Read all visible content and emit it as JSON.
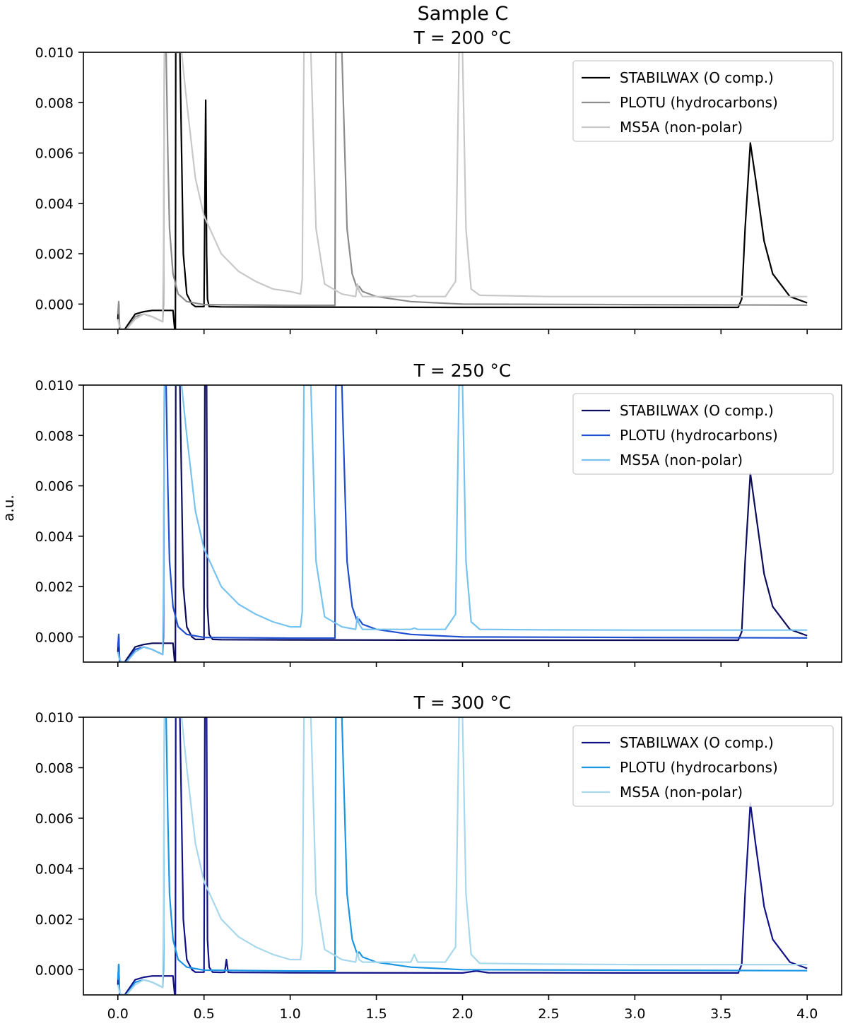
{
  "figure": {
    "suptitle": "Sample C",
    "ylabel": "a.u."
  },
  "chart_data": [
    {
      "type": "line",
      "title": "T = 200 °C",
      "xlim": [
        -0.2,
        4.2
      ],
      "ylim": [
        -0.001,
        0.01
      ],
      "x_ticks": [
        0.0,
        0.5,
        1.0,
        1.5,
        2.0,
        2.5,
        3.0,
        3.5,
        4.0
      ],
      "y_ticks": [
        0.0,
        0.002,
        0.004,
        0.006,
        0.008,
        0.01
      ],
      "x_tick_labels_visible": false,
      "legend_location": "upper right",
      "series": [
        {
          "name": "STABILWAX (O comp.)",
          "color": "#000000",
          "x": [
            0.0,
            0.005,
            0.01,
            0.02,
            0.04,
            0.06,
            0.1,
            0.15,
            0.2,
            0.25,
            0.32,
            0.33,
            0.334,
            0.336,
            0.34,
            0.36,
            0.37,
            0.38,
            0.4,
            0.43,
            0.45,
            0.5,
            0.505,
            0.51,
            0.515,
            0.52,
            0.53,
            0.55,
            0.6,
            1.0,
            2.0,
            3.0,
            3.6,
            3.62,
            3.64,
            3.67,
            3.7,
            3.75,
            3.8,
            3.9,
            4.0
          ],
          "y": [
            -0.0006,
            0.0,
            -0.001,
            -0.001,
            -0.001,
            -0.0008,
            -0.0004,
            -0.0003,
            -0.00025,
            -0.00025,
            -0.00025,
            -0.001,
            -0.001,
            0.01,
            0.01,
            0.01,
            0.006,
            0.002,
            0.0004,
            0.0,
            -0.0001,
            -0.0001,
            0.004,
            0.0081,
            0.002,
            0.0002,
            -0.0001,
            -0.0001,
            -0.00011,
            -0.00012,
            -0.00013,
            -0.00013,
            -0.00013,
            0.0002,
            0.003,
            0.0064,
            0.005,
            0.0025,
            0.0012,
            0.0003,
            5e-05
          ]
        },
        {
          "name": "PLOTU (hydrocarbons)",
          "color": "#8c8c8c",
          "x": [
            0.0,
            0.005,
            0.01,
            0.02,
            0.05,
            0.1,
            0.15,
            0.2,
            0.26,
            0.265,
            0.27,
            0.275,
            0.28,
            0.29,
            0.3,
            0.32,
            0.35,
            0.4,
            0.5,
            1.0,
            1.25,
            1.26,
            1.265,
            1.27,
            1.3,
            1.33,
            1.36,
            1.39,
            1.4,
            1.42,
            1.5,
            1.7,
            2.0,
            3.0,
            4.0
          ],
          "y": [
            -0.0004,
            0.0001,
            -0.0009,
            -0.001,
            -0.001,
            -0.0005,
            -0.0004,
            -0.0005,
            -0.0007,
            0.0,
            0.01,
            0.01,
            0.01,
            0.006,
            0.003,
            0.0012,
            0.0004,
            0.0001,
            -2e-05,
            -5e-05,
            -5e-05,
            -5e-05,
            0.01,
            0.01,
            0.01,
            0.003,
            0.0012,
            0.0006,
            0.0007,
            0.0005,
            0.0003,
            0.0001,
            0.0,
            -2e-05,
            -4e-05
          ]
        },
        {
          "name": "MS5A (non-polar)",
          "color": "#c8c8c8",
          "x": [
            0.0,
            0.01,
            0.02,
            0.05,
            0.1,
            0.15,
            0.2,
            0.26,
            0.265,
            0.27,
            0.3,
            0.35,
            0.37,
            0.4,
            0.45,
            0.5,
            0.6,
            0.7,
            0.8,
            0.9,
            1.0,
            1.06,
            1.07,
            1.08,
            1.1,
            1.12,
            1.15,
            1.2,
            1.3,
            1.38,
            1.39,
            1.4,
            1.42,
            1.5,
            1.7,
            1.72,
            1.74,
            1.9,
            1.96,
            1.98,
            2.0,
            2.02,
            2.05,
            2.1,
            2.5,
            3.0,
            4.0
          ],
          "y": [
            -0.0006,
            -0.0009,
            -0.001,
            -0.001,
            -0.0006,
            -0.0004,
            -0.0005,
            -0.0007,
            0.002,
            0.01,
            0.01,
            0.01,
            0.01,
            0.008,
            0.005,
            0.0035,
            0.002,
            0.0013,
            0.0009,
            0.0006,
            0.0005,
            0.0004,
            0.001,
            0.01,
            0.01,
            0.01,
            0.003,
            0.0008,
            0.0004,
            0.0003,
            0.0008,
            0.0005,
            0.0003,
            0.0003,
            0.0003,
            0.00035,
            0.0003,
            0.0003,
            0.0009,
            0.01,
            0.01,
            0.003,
            0.0006,
            0.00035,
            0.0003,
            0.0003,
            0.0003
          ]
        }
      ]
    },
    {
      "type": "line",
      "title": "T = 250 °C",
      "xlim": [
        -0.2,
        4.2
      ],
      "ylim": [
        -0.001,
        0.01
      ],
      "x_ticks": [
        0.0,
        0.5,
        1.0,
        1.5,
        2.0,
        2.5,
        3.0,
        3.5,
        4.0
      ],
      "y_ticks": [
        0.0,
        0.002,
        0.004,
        0.006,
        0.008,
        0.01
      ],
      "x_tick_labels_visible": false,
      "legend_location": "upper right",
      "series": [
        {
          "name": "STABILWAX (O comp.)",
          "color": "#0d0d5c",
          "x": [
            0.0,
            0.005,
            0.01,
            0.02,
            0.04,
            0.06,
            0.1,
            0.15,
            0.2,
            0.25,
            0.32,
            0.33,
            0.334,
            0.336,
            0.34,
            0.36,
            0.37,
            0.38,
            0.4,
            0.43,
            0.45,
            0.5,
            0.505,
            0.51,
            0.515,
            0.52,
            0.53,
            0.55,
            0.6,
            1.0,
            2.0,
            3.0,
            3.6,
            3.62,
            3.64,
            3.67,
            3.7,
            3.75,
            3.8,
            3.9,
            4.0
          ],
          "y": [
            -0.0006,
            0.0,
            -0.001,
            -0.001,
            -0.001,
            -0.0008,
            -0.0004,
            -0.0003,
            -0.00025,
            -0.00025,
            -0.00025,
            -0.001,
            -0.001,
            0.01,
            0.01,
            0.01,
            0.006,
            0.002,
            0.0004,
            0.0,
            -0.0001,
            -0.0001,
            0.01,
            0.01,
            0.01,
            0.0012,
            0.0001,
            -0.0001,
            -0.00011,
            -0.00012,
            -0.00013,
            -0.00013,
            -0.00013,
            0.0002,
            0.003,
            0.0065,
            0.005,
            0.0025,
            0.0012,
            0.0003,
            5e-05
          ]
        },
        {
          "name": "PLOTU (hydrocarbons)",
          "color": "#1f4fd1",
          "x": [
            0.0,
            0.005,
            0.01,
            0.02,
            0.05,
            0.1,
            0.15,
            0.2,
            0.26,
            0.265,
            0.27,
            0.275,
            0.28,
            0.29,
            0.3,
            0.32,
            0.35,
            0.4,
            0.5,
            1.0,
            1.25,
            1.26,
            1.265,
            1.27,
            1.3,
            1.33,
            1.36,
            1.39,
            1.4,
            1.42,
            1.5,
            1.7,
            2.0,
            3.0,
            4.0
          ],
          "y": [
            -0.0004,
            0.0001,
            -0.0009,
            -0.001,
            -0.001,
            -0.0005,
            -0.0004,
            -0.0005,
            -0.0007,
            0.0,
            0.01,
            0.01,
            0.01,
            0.006,
            0.003,
            0.0012,
            0.0004,
            0.0001,
            -2e-05,
            -5e-05,
            -5e-05,
            -5e-05,
            0.01,
            0.01,
            0.01,
            0.003,
            0.0012,
            0.0006,
            0.0007,
            0.0005,
            0.0003,
            0.0001,
            0.0,
            -2e-05,
            -4e-05
          ]
        },
        {
          "name": "MS5A (non-polar)",
          "color": "#77c3f0",
          "x": [
            0.0,
            0.01,
            0.02,
            0.05,
            0.1,
            0.15,
            0.2,
            0.26,
            0.265,
            0.27,
            0.3,
            0.35,
            0.37,
            0.4,
            0.45,
            0.5,
            0.6,
            0.7,
            0.8,
            0.9,
            1.0,
            1.06,
            1.07,
            1.08,
            1.1,
            1.12,
            1.15,
            1.2,
            1.3,
            1.38,
            1.39,
            1.4,
            1.42,
            1.5,
            1.7,
            1.72,
            1.74,
            1.9,
            1.96,
            1.98,
            2.0,
            2.02,
            2.05,
            2.1,
            2.5,
            3.0,
            4.0
          ],
          "y": [
            -0.0006,
            -0.0009,
            -0.001,
            -0.001,
            -0.0006,
            -0.0004,
            -0.0005,
            -0.0007,
            0.002,
            0.01,
            0.01,
            0.01,
            0.01,
            0.008,
            0.005,
            0.0035,
            0.002,
            0.0013,
            0.0009,
            0.0006,
            0.0004,
            0.0004,
            0.001,
            0.01,
            0.01,
            0.01,
            0.003,
            0.0008,
            0.0004,
            0.0003,
            0.0008,
            0.0005,
            0.0003,
            0.0003,
            0.0003,
            0.00035,
            0.0003,
            0.0003,
            0.0009,
            0.01,
            0.01,
            0.003,
            0.0006,
            0.0003,
            0.00028,
            0.00027,
            0.00027
          ]
        }
      ]
    },
    {
      "type": "line",
      "title": "T = 300 °C",
      "xlim": [
        -0.2,
        4.2
      ],
      "ylim": [
        -0.001,
        0.01
      ],
      "x_ticks": [
        0.0,
        0.5,
        1.0,
        1.5,
        2.0,
        2.5,
        3.0,
        3.5,
        4.0
      ],
      "y_ticks": [
        0.0,
        0.002,
        0.004,
        0.006,
        0.008,
        0.01
      ],
      "x_tick_labels_visible": true,
      "legend_location": "upper right",
      "series": [
        {
          "name": "STABILWAX (O comp.)",
          "color": "#111188",
          "x": [
            0.0,
            0.005,
            0.01,
            0.02,
            0.04,
            0.06,
            0.1,
            0.15,
            0.2,
            0.25,
            0.32,
            0.33,
            0.334,
            0.336,
            0.34,
            0.36,
            0.37,
            0.38,
            0.4,
            0.43,
            0.45,
            0.5,
            0.505,
            0.51,
            0.515,
            0.52,
            0.53,
            0.55,
            0.6,
            0.62,
            0.63,
            0.64,
            0.66,
            1.0,
            2.0,
            2.08,
            2.15,
            3.0,
            3.6,
            3.62,
            3.64,
            3.67,
            3.7,
            3.75,
            3.8,
            3.9,
            4.0
          ],
          "y": [
            -0.0006,
            0.0002,
            -0.001,
            -0.001,
            -0.001,
            -0.0008,
            -0.0004,
            -0.0003,
            -0.00025,
            -0.00025,
            -0.00025,
            -0.001,
            -0.001,
            0.01,
            0.01,
            0.01,
            0.006,
            0.002,
            0.0004,
            0.0,
            -0.0001,
            -0.0001,
            0.01,
            0.01,
            0.01,
            0.0012,
            0.0001,
            -0.0001,
            -0.00011,
            -0.0001,
            0.0004,
            -0.0001,
            -0.00011,
            -0.00012,
            -0.00013,
            -5e-05,
            -0.00012,
            -0.00013,
            -0.00013,
            0.0002,
            0.003,
            0.0066,
            0.005,
            0.0025,
            0.0012,
            0.0003,
            5e-05
          ]
        },
        {
          "name": "PLOTU (hydrocarbons)",
          "color": "#1b96e4",
          "x": [
            0.0,
            0.005,
            0.01,
            0.02,
            0.05,
            0.1,
            0.15,
            0.2,
            0.26,
            0.265,
            0.27,
            0.275,
            0.28,
            0.29,
            0.3,
            0.32,
            0.35,
            0.4,
            0.5,
            1.0,
            1.25,
            1.26,
            1.265,
            1.27,
            1.3,
            1.33,
            1.36,
            1.39,
            1.4,
            1.42,
            1.5,
            1.7,
            2.0,
            3.0,
            4.0
          ],
          "y": [
            -0.0004,
            0.0002,
            -0.0009,
            -0.001,
            -0.001,
            -0.0005,
            -0.0004,
            -0.0005,
            -0.0007,
            0.0,
            0.01,
            0.01,
            0.01,
            0.006,
            0.003,
            0.0012,
            0.0004,
            0.0001,
            -2e-05,
            -5e-05,
            -5e-05,
            -5e-05,
            0.01,
            0.01,
            0.01,
            0.003,
            0.0012,
            0.0006,
            0.0007,
            0.0005,
            0.0003,
            0.0001,
            0.0,
            -2e-05,
            -4e-05
          ]
        },
        {
          "name": "MS5A (non-polar)",
          "color": "#a8d8ec",
          "x": [
            0.0,
            0.01,
            0.02,
            0.05,
            0.1,
            0.15,
            0.2,
            0.26,
            0.265,
            0.27,
            0.3,
            0.35,
            0.37,
            0.4,
            0.45,
            0.5,
            0.6,
            0.7,
            0.8,
            0.9,
            1.0,
            1.06,
            1.07,
            1.08,
            1.1,
            1.12,
            1.15,
            1.2,
            1.3,
            1.38,
            1.39,
            1.4,
            1.42,
            1.5,
            1.7,
            1.72,
            1.74,
            1.9,
            1.96,
            1.98,
            2.0,
            2.02,
            2.05,
            2.1,
            2.5,
            3.0,
            4.0
          ],
          "y": [
            -0.0006,
            -0.0009,
            -0.001,
            -0.001,
            -0.0006,
            -0.0004,
            -0.0005,
            -0.0007,
            0.002,
            0.01,
            0.01,
            0.01,
            0.01,
            0.008,
            0.005,
            0.0035,
            0.002,
            0.0013,
            0.0009,
            0.0006,
            0.0004,
            0.0004,
            0.001,
            0.01,
            0.01,
            0.01,
            0.003,
            0.0008,
            0.0004,
            0.0003,
            0.0007,
            0.0004,
            0.0003,
            0.0003,
            0.0003,
            0.0006,
            0.0003,
            0.0003,
            0.0009,
            0.01,
            0.01,
            0.003,
            0.0006,
            0.00025,
            0.00022,
            0.0002,
            0.0002
          ]
        }
      ]
    }
  ]
}
